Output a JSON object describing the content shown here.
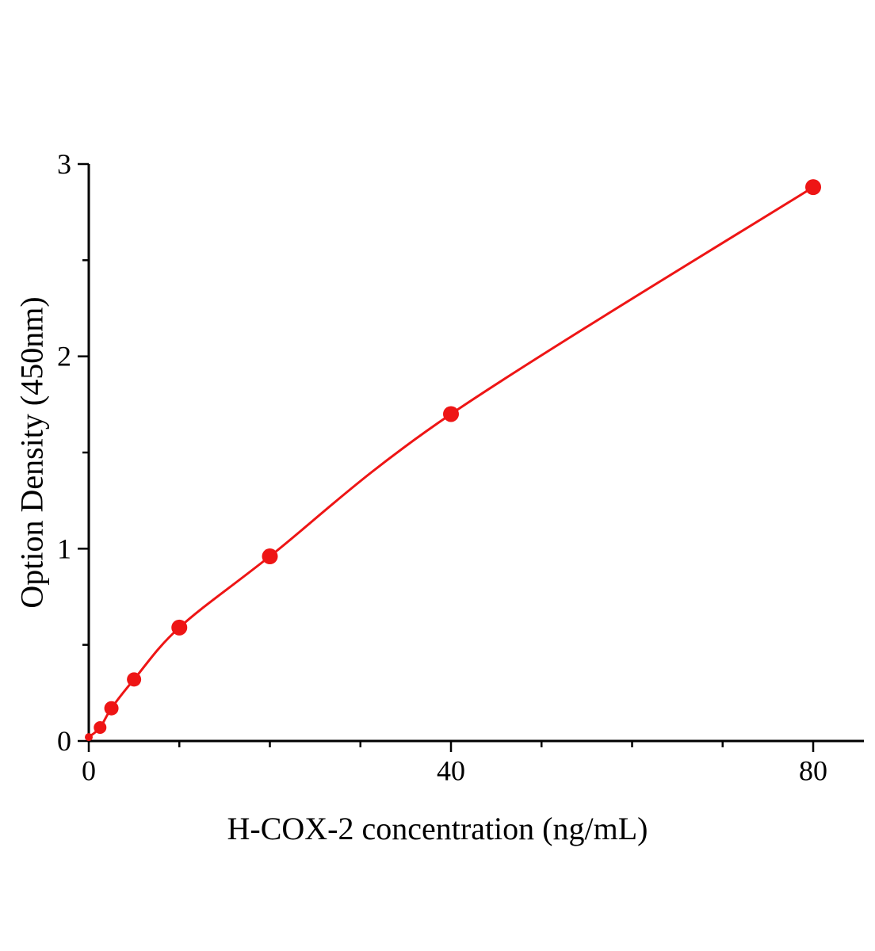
{
  "chart_data": {
    "type": "scatter",
    "title": "",
    "xlabel": "H-COX-2 concentration (ng/mL)",
    "ylabel": "Option Density (450nm)",
    "x": [
      0,
      1.25,
      2.5,
      5,
      10,
      20,
      40,
      80
    ],
    "y": [
      0.02,
      0.07,
      0.17,
      0.32,
      0.59,
      0.96,
      1.7,
      2.88
    ],
    "xlim": [
      0,
      85.6
    ],
    "ylim": [
      0,
      3
    ],
    "x_major_ticks": [
      0,
      40,
      80
    ],
    "x_minor_step": 10,
    "y_major_ticks": [
      0,
      1,
      2,
      3
    ],
    "y_minor_step": 0.5,
    "grid": false,
    "legend": "none",
    "line_color": "#ee1515",
    "marker_color": "#ee1515",
    "marker_radii": [
      5,
      8,
      9,
      9,
      10,
      10,
      10,
      10
    ],
    "line_width": 3,
    "axis_color": "#000000"
  }
}
